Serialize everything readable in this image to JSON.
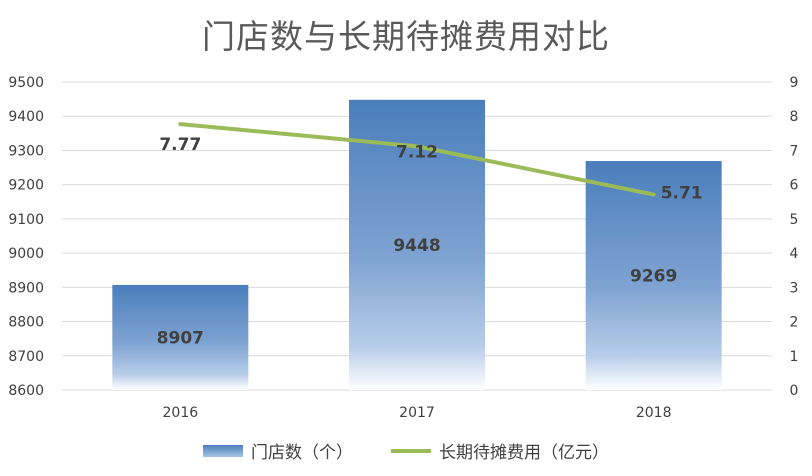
{
  "chart_data": {
    "type": "bar",
    "title": "门店数与长期待摊费用对比",
    "categories": [
      "2016",
      "2017",
      "2018"
    ],
    "series": [
      {
        "name": "门店数（个）",
        "type": "bar",
        "axis": "left",
        "values": [
          8907,
          9448,
          9269
        ],
        "labels": [
          "8907",
          "9448",
          "9269"
        ],
        "color": "#4a7ebb"
      },
      {
        "name": "长期待摊费用（亿元）",
        "type": "line",
        "axis": "right",
        "values": [
          7.77,
          7.12,
          5.71
        ],
        "labels": [
          "7.77",
          "7.12",
          "5.71"
        ],
        "color": "#9bbb59"
      }
    ],
    "y_left": {
      "min": 8600,
      "max": 9500,
      "ticks": [
        "8600",
        "8700",
        "8800",
        "8900",
        "9000",
        "9100",
        "9200",
        "9300",
        "9400",
        "9500"
      ]
    },
    "y_right": {
      "min": 0,
      "max": 9,
      "ticks": [
        "0",
        "1",
        "2",
        "3",
        "4",
        "5",
        "6",
        "7",
        "8",
        "9"
      ]
    },
    "grid": true,
    "legend_position": "bottom"
  }
}
